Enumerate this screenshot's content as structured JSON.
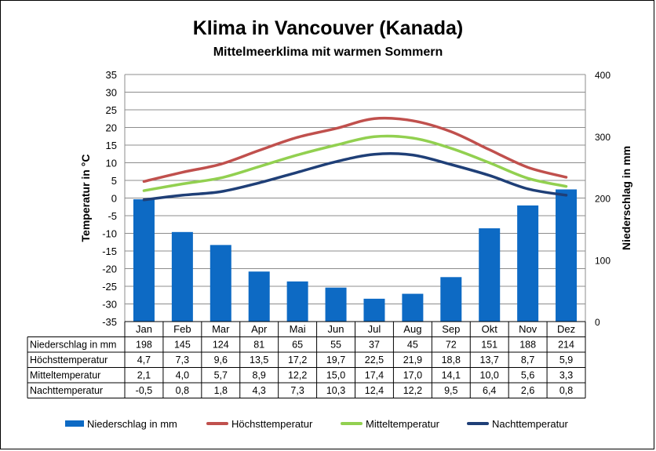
{
  "title": "Klima in Vancouver (Kanada)",
  "subtitle": "Mittelmeerklima mit warmen Sommern",
  "chart_data": {
    "type": "bar",
    "title": "Klima in Vancouver (Kanada)",
    "subtitle": "Mittelmeerklima mit warmen Sommern",
    "categories": [
      "Jan",
      "Feb",
      "Mar",
      "Apr",
      "Mai",
      "Jun",
      "Jul",
      "Aug",
      "Sep",
      "Okt",
      "Nov",
      "Dez"
    ],
    "ylabel": "Temperatur in °C",
    "y2label": "Niederschlag in mm",
    "ylim": [
      -35,
      35
    ],
    "y2lim": [
      0,
      400
    ],
    "yticks": [
      35,
      30,
      25,
      20,
      15,
      10,
      5,
      0,
      -5,
      -10,
      -15,
      -20,
      -25,
      -30,
      -35
    ],
    "y2ticks": [
      400,
      300,
      200,
      100,
      0
    ],
    "grid": true,
    "legend_position": "bottom",
    "series": [
      {
        "name": "Niederschlag in mm",
        "kind": "bar",
        "axis": "right",
        "color": "#0d6ac4",
        "values": [
          198,
          145,
          124,
          81,
          65,
          55,
          37,
          45,
          72,
          151,
          188,
          214
        ],
        "labels": [
          "198",
          "145",
          "124",
          "81",
          "65",
          "55",
          "37",
          "45",
          "72",
          "151",
          "188",
          "214"
        ]
      },
      {
        "name": "Höchsttemperatur",
        "kind": "line",
        "axis": "left",
        "color": "#c0504d",
        "values": [
          4.7,
          7.3,
          9.6,
          13.5,
          17.2,
          19.7,
          22.5,
          21.9,
          18.8,
          13.7,
          8.7,
          5.9
        ],
        "labels": [
          "4,7",
          "7,3",
          "9,6",
          "13,5",
          "17,2",
          "19,7",
          "22,5",
          "21,9",
          "18,8",
          "13,7",
          "8,7",
          "5,9"
        ]
      },
      {
        "name": "Mitteltemperatur",
        "kind": "line",
        "axis": "left",
        "color": "#92d050",
        "values": [
          2.1,
          4.0,
          5.7,
          8.9,
          12.2,
          15.0,
          17.4,
          17.0,
          14.1,
          10.0,
          5.6,
          3.3
        ],
        "labels": [
          "2,1",
          "4,0",
          "5,7",
          "8,9",
          "12,2",
          "15,0",
          "17,4",
          "17,0",
          "14,1",
          "10,0",
          "5,6",
          "3,3"
        ]
      },
      {
        "name": "Nachttemperatur",
        "kind": "line",
        "axis": "left",
        "color": "#1f3f77",
        "values": [
          -0.5,
          0.8,
          1.8,
          4.3,
          7.3,
          10.3,
          12.4,
          12.2,
          9.5,
          6.4,
          2.6,
          0.8
        ],
        "labels": [
          "-0,5",
          "0,8",
          "1,8",
          "4,3",
          "7,3",
          "10,3",
          "12,4",
          "12,2",
          "9,5",
          "6,4",
          "2,6",
          "0,8"
        ]
      }
    ]
  }
}
